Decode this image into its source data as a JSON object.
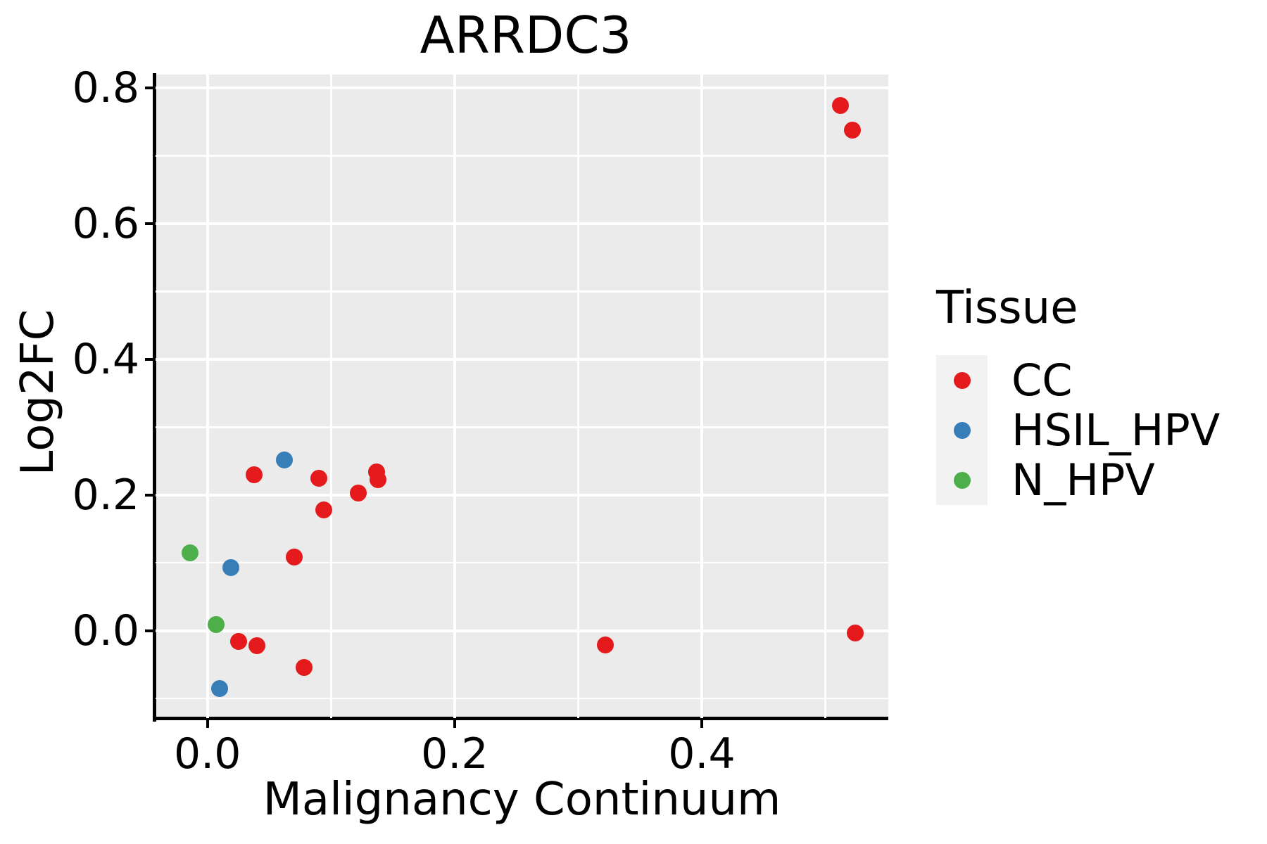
{
  "plot": {
    "title": "ARRDC3",
    "x_axis": {
      "label": "Malignancy Continuum",
      "tick_labels": [
        "0.0",
        "0.2",
        "0.4"
      ]
    },
    "y_axis": {
      "label": "Log2FC",
      "tick_labels": [
        "0.0",
        "0.2",
        "0.4",
        "0.6",
        "0.8"
      ]
    },
    "legend": {
      "title": "Tissue",
      "items": [
        {
          "label": "CC",
          "color": "#E41A1C"
        },
        {
          "label": "HSIL_HPV",
          "color": "#377EB8"
        },
        {
          "label": "N_HPV",
          "color": "#4DAF4A"
        }
      ]
    }
  },
  "colors": {
    "panel_background": "#EBEBEB",
    "gridline": "#FFFFFF",
    "axis": "#000000",
    "legend_key_background": "#F2F2F2",
    "cc": "#E41A1C",
    "hsil_hpv": "#377EB8",
    "n_hpv": "#4DAF4A"
  },
  "chart_data": {
    "type": "scatter",
    "title": "ARRDC3",
    "xlabel": "Malignancy Continuum",
    "ylabel": "Log2FC",
    "xlim": [
      -0.042,
      0.551
    ],
    "ylim": [
      -0.129,
      0.82
    ],
    "x_ticks": [
      0.0,
      0.2,
      0.4
    ],
    "y_ticks": [
      0.0,
      0.2,
      0.4,
      0.6,
      0.8
    ],
    "x_minor_gridlines": [
      0.1,
      0.3,
      0.5
    ],
    "y_minor_gridlines": [
      -0.1,
      0.1,
      0.3,
      0.5,
      0.7
    ],
    "grid": true,
    "legend_title": "Tissue",
    "legend_position": "right",
    "series": [
      {
        "name": "CC",
        "color": "#E41A1C",
        "points": [
          [
            0.512,
            0.774
          ],
          [
            0.522,
            0.738
          ],
          [
            0.038,
            0.23
          ],
          [
            0.09,
            0.225
          ],
          [
            0.137,
            0.234
          ],
          [
            0.138,
            0.223
          ],
          [
            0.122,
            0.203
          ],
          [
            0.094,
            0.178
          ],
          [
            0.07,
            0.108
          ],
          [
            0.025,
            -0.016
          ],
          [
            0.04,
            -0.022
          ],
          [
            0.078,
            -0.054
          ],
          [
            0.322,
            -0.021
          ],
          [
            0.524,
            -0.003
          ]
        ]
      },
      {
        "name": "HSIL_HPV",
        "color": "#377EB8",
        "points": [
          [
            0.062,
            0.252
          ],
          [
            0.019,
            0.093
          ],
          [
            0.01,
            -0.085
          ]
        ]
      },
      {
        "name": "N_HPV",
        "color": "#4DAF4A",
        "points": [
          [
            -0.014,
            0.115
          ],
          [
            0.007,
            0.009
          ]
        ]
      }
    ]
  }
}
